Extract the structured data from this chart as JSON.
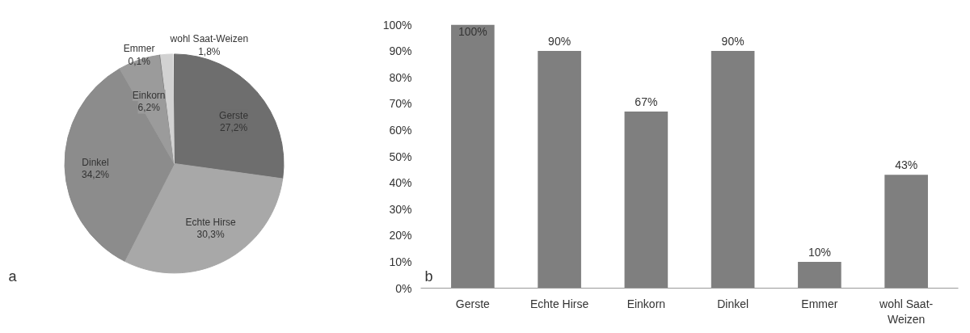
{
  "chart_data": [
    {
      "type": "pie",
      "categories": [
        "Gerste",
        "Echte Hirse",
        "Dinkel",
        "Einkorn",
        "Emmer",
        "wohl Saat-Weizen"
      ],
      "values": [
        27.2,
        30.3,
        34.2,
        6.2,
        0.1,
        1.8
      ],
      "value_labels": [
        "27,2%",
        "30,3%",
        "34,2%",
        "6,2%",
        "0,1%",
        "1,8%"
      ],
      "colors": [
        "#6e6e6e",
        "#a8a8a8",
        "#8c8c8c",
        "#9b9b9b",
        "#7a7a7a",
        "#d2d2d2"
      ],
      "annotations": [
        "a"
      ]
    },
    {
      "type": "bar",
      "categories": [
        "Gerste",
        "Echte Hirse",
        "Einkorn",
        "Dinkel",
        "Emmer",
        "wohl Saat-Weizen"
      ],
      "values": [
        100,
        90,
        67,
        90,
        10,
        43
      ],
      "value_labels": [
        "100%",
        "90%",
        "67%",
        "90%",
        "10%",
        "43%"
      ],
      "color": "#7f7f7f",
      "ylim": [
        0,
        100
      ],
      "yticks": [
        {
          "value": 0,
          "label": "0%"
        },
        {
          "value": 10,
          "label": "10%"
        },
        {
          "value": 20,
          "label": "20%"
        },
        {
          "value": 30,
          "label": "30%"
        },
        {
          "value": 40,
          "label": "40%"
        },
        {
          "value": 50,
          "label": "50%"
        },
        {
          "value": 60,
          "label": "60%"
        },
        {
          "value": 70,
          "label": "70%"
        },
        {
          "value": 80,
          "label": "80%"
        },
        {
          "value": 90,
          "label": "90%"
        },
        {
          "value": 100,
          "label": "100%"
        }
      ],
      "grid": false,
      "annotations": [
        "b"
      ]
    }
  ]
}
